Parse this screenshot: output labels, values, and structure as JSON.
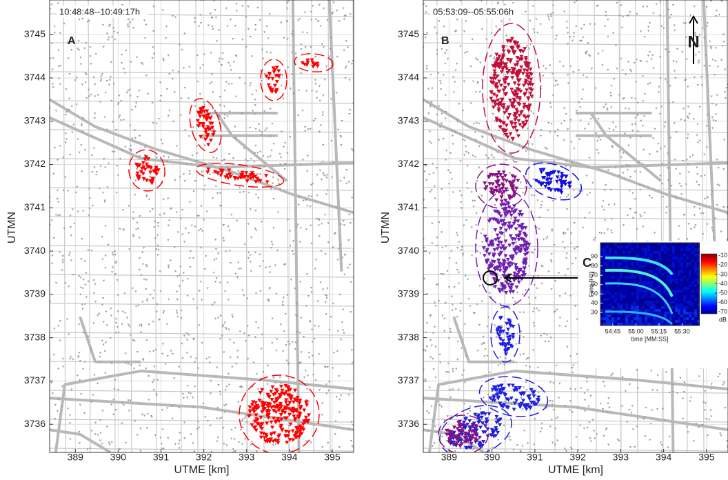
{
  "chart_data": [
    {
      "type": "map",
      "label": "A",
      "time": "10:48:48--10:49:17h",
      "xlabel": "UTME [km]",
      "ylabel": "UTMN",
      "xlim": [
        388.4,
        395.5
      ],
      "ylim": [
        3735.35,
        3745.8
      ],
      "xticks": [
        389,
        390,
        391,
        392,
        393,
        394,
        395
      ],
      "yticks": [
        3736,
        3737,
        3738,
        3739,
        3740,
        3741,
        3742,
        3743,
        3744,
        3745
      ],
      "grid": true
    },
    {
      "type": "map",
      "label": "B",
      "time": "05:53:09--05:55:06h",
      "north": "N",
      "xlabel": "UTME [km]",
      "ylabel": "UTMN",
      "xlim": [
        388.4,
        395.5
      ],
      "ylim": [
        3735.35,
        3745.8
      ],
      "xticks": [
        389,
        390,
        391,
        392,
        393,
        394,
        395
      ],
      "yticks": [
        3736,
        3737,
        3738,
        3739,
        3740,
        3741,
        3742,
        3743,
        3744,
        3745
      ],
      "grid": true
    },
    {
      "type": "spectrogram",
      "label": "C",
      "xlabel": "time [MM:SS]",
      "ylabel": "Freq [Hz]",
      "xlim": [
        3277,
        3341
      ],
      "ylim": [
        16,
        105
      ],
      "xticks": [
        {
          "value": 3285,
          "label": "54:45"
        },
        {
          "value": 3300,
          "label": "55:00"
        },
        {
          "value": 3315,
          "label": "55:15"
        },
        {
          "value": 3330,
          "label": "55:30"
        }
      ],
      "yticks": [
        30,
        40,
        50,
        60,
        70,
        80,
        90
      ],
      "clim": [
        -72,
        -8
      ],
      "cticks": [
        -10,
        -20,
        -30,
        -40,
        -50,
        -60,
        -70
      ],
      "colorbar_label": "dB"
    }
  ]
}
